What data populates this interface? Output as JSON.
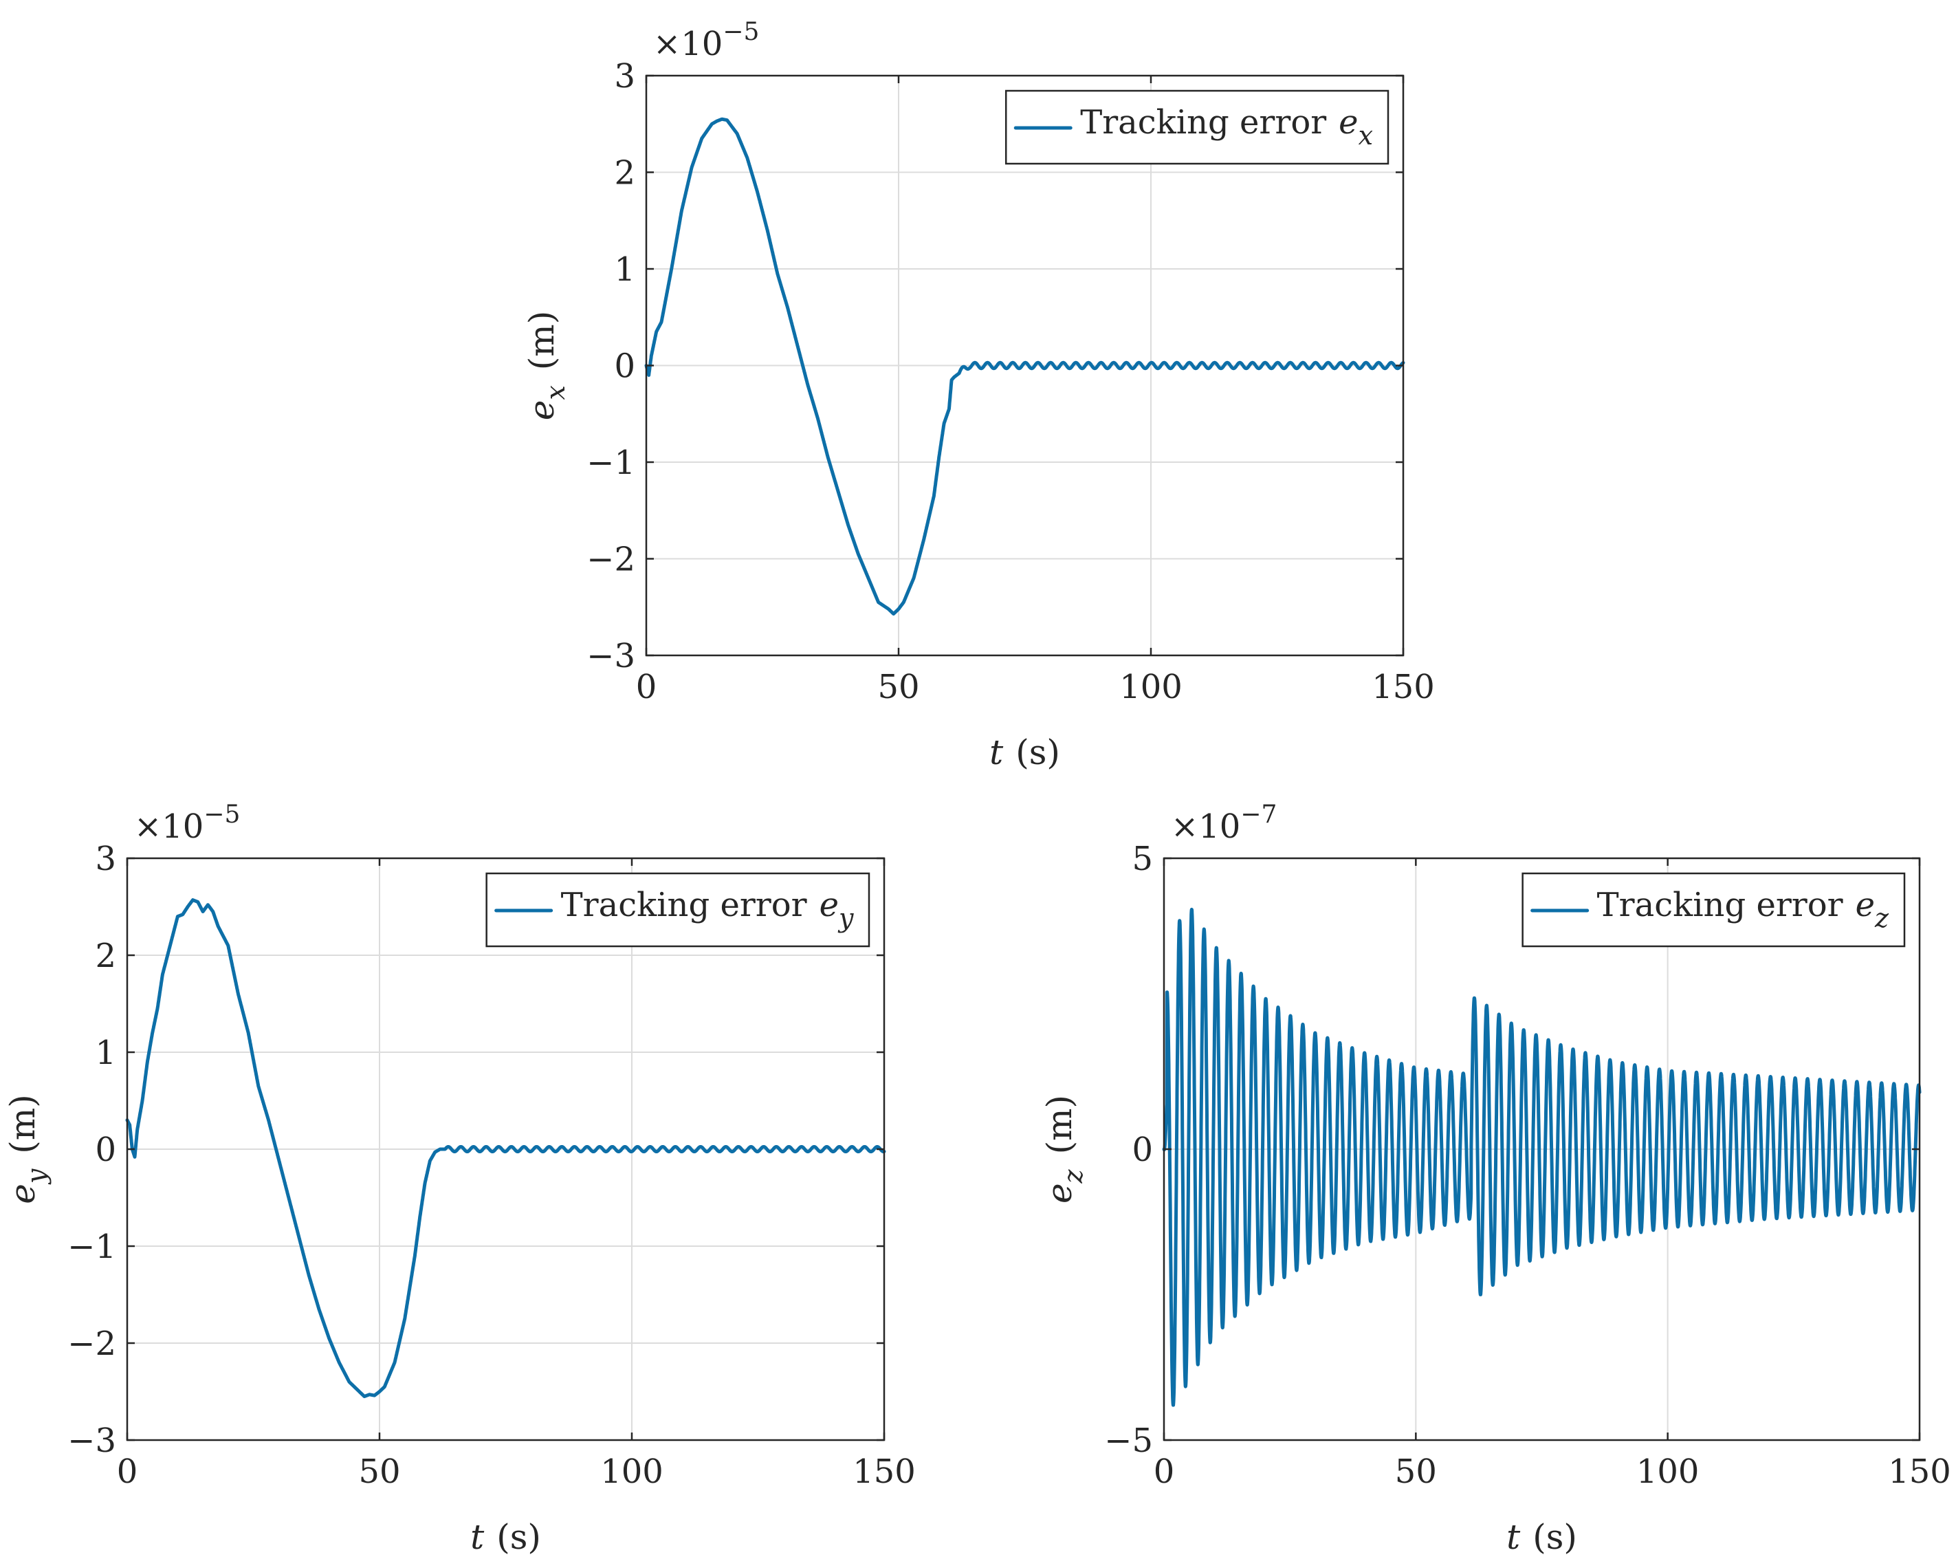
{
  "chart_data": [
    {
      "type": "line",
      "id": "ex",
      "exponent_base": "×10",
      "exponent_power": "−5",
      "xlabel_var": "t",
      "xlabel_unit": "(s)",
      "ylabel_var": "e",
      "ylabel_sub": "x",
      "ylabel_unit": "(m)",
      "xlim": [
        0,
        150
      ],
      "ylim": [
        -3,
        3
      ],
      "xticks": [
        0,
        50,
        100,
        150
      ],
      "yticks": [
        -3,
        -2,
        -1,
        0,
        1,
        2,
        3
      ],
      "xtick_labels": [
        "0",
        "50",
        "100",
        "150"
      ],
      "ytick_labels": [
        "−3",
        "−2",
        "−1",
        "0",
        "1",
        "2",
        "3"
      ],
      "grid": true,
      "legend_position": "top-right",
      "series": [
        {
          "name_text": "Tracking error",
          "name_var": "e",
          "name_sub": "x",
          "color": "#0d6fa8",
          "x": [
            0,
            0.5,
            1,
            2,
            3,
            5,
            7,
            9,
            11,
            13,
            14,
            15,
            16,
            18,
            20,
            22,
            24,
            26,
            28,
            30,
            32,
            34,
            36,
            38,
            40,
            42,
            44,
            46,
            48,
            49,
            50,
            51,
            53,
            55,
            57,
            58,
            59,
            60,
            60.5,
            61,
            62,
            63,
            64,
            66,
            70,
            80,
            90,
            100,
            110,
            120,
            130,
            140,
            150
          ],
          "values": [
            0,
            -0.1,
            0.1,
            0.35,
            0.45,
            1.0,
            1.6,
            2.05,
            2.35,
            2.5,
            2.53,
            2.55,
            2.54,
            2.4,
            2.15,
            1.8,
            1.4,
            0.95,
            0.6,
            0.2,
            -0.2,
            -0.55,
            -0.95,
            -1.3,
            -1.65,
            -1.95,
            -2.2,
            -2.45,
            -2.52,
            -2.57,
            -2.52,
            -2.45,
            -2.2,
            -1.8,
            -1.35,
            -0.95,
            -0.6,
            -0.45,
            -0.15,
            -0.12,
            -0.08,
            -0.03,
            0.0,
            0.0,
            0.0,
            0.0,
            0.0,
            0.0,
            0.0,
            0.0,
            0.0,
            0.0,
            0.0
          ],
          "ripple_after": 62,
          "ripple_amplitude": 0.03,
          "ripple_period": 2.5
        }
      ]
    },
    {
      "type": "line",
      "id": "ey",
      "exponent_base": "×10",
      "exponent_power": "−5",
      "xlabel_var": "t",
      "xlabel_unit": "(s)",
      "ylabel_var": "e",
      "ylabel_sub": "y",
      "ylabel_unit": "(m)",
      "xlim": [
        0,
        150
      ],
      "ylim": [
        -3,
        3
      ],
      "xticks": [
        0,
        50,
        100,
        150
      ],
      "yticks": [
        -3,
        -2,
        -1,
        0,
        1,
        2,
        3
      ],
      "xtick_labels": [
        "0",
        "50",
        "100",
        "150"
      ],
      "ytick_labels": [
        "−3",
        "−2",
        "−1",
        "0",
        "1",
        "2",
        "3"
      ],
      "grid": true,
      "legend_position": "top-right",
      "series": [
        {
          "name_text": "Tracking error",
          "name_var": "e",
          "name_sub": "y",
          "color": "#0d6fa8",
          "x": [
            0,
            0.5,
            1,
            1.5,
            2,
            3,
            4,
            5,
            6,
            7,
            8,
            9,
            10,
            11,
            12,
            13,
            14,
            15,
            16,
            17,
            18,
            19,
            20,
            21,
            22,
            24,
            26,
            28,
            30,
            32,
            34,
            36,
            38,
            40,
            42,
            44,
            46,
            47,
            48,
            49,
            50,
            51,
            53,
            55,
            57,
            58,
            59,
            60,
            61,
            62,
            63,
            64,
            66,
            70,
            80,
            90,
            100,
            110,
            120,
            130,
            140,
            150
          ],
          "values": [
            0.3,
            0.25,
            0.0,
            -0.08,
            0.2,
            0.5,
            0.9,
            1.2,
            1.45,
            1.8,
            2.0,
            2.2,
            2.4,
            2.42,
            2.5,
            2.57,
            2.55,
            2.45,
            2.52,
            2.45,
            2.3,
            2.2,
            2.1,
            1.85,
            1.6,
            1.2,
            0.65,
            0.3,
            -0.1,
            -0.5,
            -0.9,
            -1.3,
            -1.65,
            -1.95,
            -2.2,
            -2.4,
            -2.5,
            -2.55,
            -2.53,
            -2.54,
            -2.5,
            -2.45,
            -2.2,
            -1.75,
            -1.1,
            -0.7,
            -0.35,
            -0.12,
            -0.03,
            0.0,
            0.0,
            0.0,
            0.0,
            0.0,
            0.0,
            0.0,
            0.0,
            0.0,
            0.0,
            0.0,
            0.0,
            0.0
          ],
          "ripple_after": 63,
          "ripple_amplitude": 0.025,
          "ripple_period": 2.5
        }
      ]
    },
    {
      "type": "line",
      "id": "ez",
      "exponent_base": "×10",
      "exponent_power": "−7",
      "xlabel_var": "t",
      "xlabel_unit": "(s)",
      "ylabel_var": "e",
      "ylabel_sub": "z",
      "ylabel_unit": "(m)",
      "xlim": [
        0,
        150
      ],
      "ylim": [
        -5,
        5
      ],
      "xticks": [
        0,
        50,
        100,
        150
      ],
      "yticks": [
        -5,
        0,
        5
      ],
      "xtick_labels": [
        "0",
        "50",
        "100",
        "150"
      ],
      "ytick_labels": [
        "−5",
        "0",
        "5"
      ],
      "grid": true,
      "legend_position": "top-right",
      "series": [
        {
          "name_text": "Tracking error",
          "name_var": "e",
          "name_sub": "z",
          "color": "#0d6fa8",
          "oscillation": {
            "period": 2.45,
            "segments": [
              {
                "t0": 0,
                "t1": 61,
                "upper": [
                  [
                    2,
                    2.7
                  ],
                  [
                    3.5,
                    4.4
                  ],
                  [
                    10,
                    3.5
                  ],
                  [
                    20,
                    2.6
                  ],
                  [
                    30,
                    2.0
                  ],
                  [
                    40,
                    1.65
                  ],
                  [
                    50,
                    1.4
                  ],
                  [
                    60,
                    1.3
                  ]
                ],
                "lower": [
                  [
                    2,
                    -4.4
                  ],
                  [
                    3.5,
                    -4.2
                  ],
                  [
                    10,
                    -3.2
                  ],
                  [
                    20,
                    -2.4
                  ],
                  [
                    30,
                    -1.9
                  ],
                  [
                    40,
                    -1.6
                  ],
                  [
                    50,
                    -1.45
                  ],
                  [
                    60,
                    -1.2
                  ]
                ]
              },
              {
                "t0": 61,
                "t1": 150,
                "upper": [
                  [
                    62,
                    2.6
                  ],
                  [
                    70,
                    2.1
                  ],
                  [
                    80,
                    1.75
                  ],
                  [
                    90,
                    1.5
                  ],
                  [
                    100,
                    1.35
                  ],
                  [
                    120,
                    1.25
                  ],
                  [
                    150,
                    1.1
                  ]
                ],
                "lower": [
                  [
                    63,
                    -2.5
                  ],
                  [
                    70,
                    -2.0
                  ],
                  [
                    80,
                    -1.7
                  ],
                  [
                    90,
                    -1.5
                  ],
                  [
                    100,
                    -1.35
                  ],
                  [
                    120,
                    -1.2
                  ],
                  [
                    150,
                    -1.05
                  ]
                ]
              }
            ],
            "end_value": -0.85
          }
        }
      ]
    }
  ]
}
